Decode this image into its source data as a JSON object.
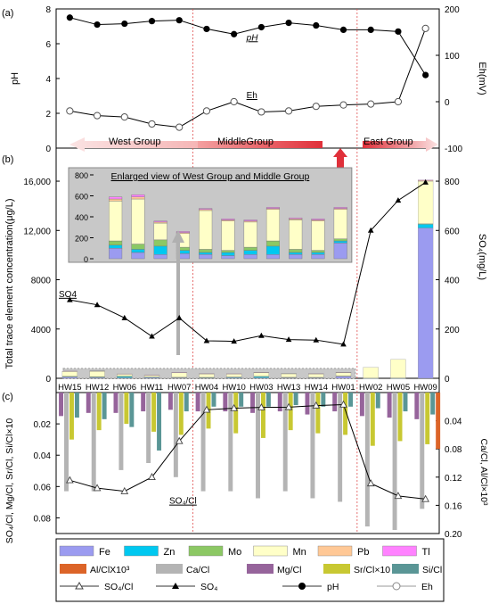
{
  "wells": [
    "HW15",
    "HW12",
    "HW06",
    "HW11",
    "HW07",
    "HW04",
    "HW10",
    "HW03",
    "HW13",
    "HW14",
    "HW01",
    "HW02",
    "HW05",
    "HW09"
  ],
  "panel_labels": {
    "a": "(a)",
    "b": "(b)",
    "c": "(c)"
  },
  "groups": {
    "west": "West Group",
    "middle": "MiddleGroup",
    "east": "East Group"
  },
  "inset_title": "Enlarged view of West Group  and Middle Group",
  "legend": {
    "items": [
      {
        "label": "Fe",
        "color": "#9b9bf0",
        "kind": "box"
      },
      {
        "label": "Zn",
        "color": "#00c8f0",
        "kind": "box"
      },
      {
        "label": "Mo",
        "color": "#8cc864",
        "kind": "box"
      },
      {
        "label": "Mn",
        "color": "#ffffc8",
        "kind": "box"
      },
      {
        "label": "Pb",
        "color": "#ffc896",
        "kind": "box"
      },
      {
        "label": "Tl",
        "color": "#ff82ff",
        "kind": "box"
      },
      {
        "label": "Al/ClX10³",
        "color": "#dc6428",
        "kind": "box"
      },
      {
        "label": "Ca/Cl",
        "color": "#b4b4b4",
        "kind": "box"
      },
      {
        "label": "Mg/Cl",
        "color": "#96649b",
        "kind": "box"
      },
      {
        "label": "Sr/Cl×10",
        "color": "#c8c832",
        "kind": "box"
      },
      {
        "label": "Si/Cl",
        "color": "#5a9696",
        "kind": "box"
      },
      {
        "label": "SO₄/Cl",
        "color": "#555555",
        "kind": "line-open-tri"
      },
      {
        "label": "SO₄",
        "color": "#000000",
        "kind": "line-tri"
      },
      {
        "label": "pH",
        "color": "#000000",
        "kind": "line-circle"
      },
      {
        "label": "Eh",
        "color": "#888888",
        "kind": "line-open-circle"
      }
    ]
  },
  "chart_data": [
    {
      "panel": "a",
      "type": "line",
      "x": [
        "HW15",
        "HW12",
        "HW06",
        "HW11",
        "HW07",
        "HW04",
        "HW10",
        "HW03",
        "HW13",
        "HW14",
        "HW01",
        "HW02",
        "HW05",
        "HW09"
      ],
      "ylabel": "pH",
      "ylabel_right": "Eh(mV)",
      "ylim": [
        0,
        8
      ],
      "ylim_right": [
        -100,
        200
      ],
      "yticks": [
        0,
        2,
        4,
        6,
        8
      ],
      "yticks_right": [
        -100,
        0,
        100,
        200
      ],
      "series": [
        {
          "name": "pH",
          "axis": "left",
          "values": [
            7.5,
            7.1,
            7.15,
            7.3,
            7.35,
            6.85,
            6.55,
            6.95,
            7.2,
            7.05,
            6.8,
            6.8,
            6.7,
            4.2
          ],
          "label": "pH"
        },
        {
          "name": "Eh",
          "axis": "right",
          "values": [
            -20,
            -30,
            -33,
            -48,
            -55,
            -20,
            0,
            -22,
            -20,
            -10,
            -7,
            -5,
            0,
            158
          ],
          "label": "Eh"
        }
      ]
    },
    {
      "panel": "b",
      "type": "bar",
      "stacked": true,
      "categories": [
        "HW15",
        "HW12",
        "HW06",
        "HW11",
        "HW07",
        "HW04",
        "HW10",
        "HW03",
        "HW13",
        "HW14",
        "HW01",
        "HW02",
        "HW05",
        "HW09"
      ],
      "ylabel": "Total trace element concentration(μg/L)",
      "ylabel_right": "SO₄(mg/L)",
      "ylim": [
        0,
        16800
      ],
      "ylim_right": [
        0,
        840
      ],
      "yticks": [
        0,
        4000,
        8000,
        12000,
        16000
      ],
      "ytick_labels": [
        "0",
        "4000",
        "8000",
        "12,000",
        "16,000"
      ],
      "yticks_right": [
        0,
        200,
        400,
        600,
        800
      ],
      "series": [
        {
          "name": "Fe",
          "values": [
            100,
            60,
            40,
            50,
            40,
            30,
            40,
            40,
            40,
            40,
            150,
            0,
            0,
            12200
          ]
        },
        {
          "name": "Zn",
          "values": [
            30,
            30,
            80,
            30,
            20,
            30,
            40,
            80,
            20,
            20,
            20,
            10,
            10,
            300
          ]
        },
        {
          "name": "Mo",
          "values": [
            40,
            50,
            60,
            30,
            30,
            20,
            30,
            50,
            30,
            20,
            20,
            10,
            20,
            50
          ]
        },
        {
          "name": "Mn",
          "values": [
            380,
            430,
            160,
            130,
            370,
            280,
            240,
            300,
            280,
            280,
            280,
            860,
            1500,
            3450
          ]
        },
        {
          "name": "Pb",
          "values": [
            20,
            20,
            10,
            10,
            10,
            10,
            10,
            10,
            10,
            10,
            10,
            0,
            0,
            50
          ]
        },
        {
          "name": "Tl",
          "values": [
            20,
            20,
            10,
            10,
            10,
            10,
            10,
            10,
            10,
            10,
            10,
            0,
            0,
            50
          ]
        }
      ],
      "line_series": {
        "name": "SO4",
        "axis": "right",
        "label": "SO4",
        "values": [
          318,
          298,
          245,
          170,
          245,
          152,
          150,
          173,
          157,
          155,
          138,
          600,
          722,
          795
        ]
      },
      "inset": {
        "title": "Enlarged view of West Group  and Middle Group",
        "categories": [
          "HW15",
          "HW12",
          "HW06",
          "HW11",
          "HW07",
          "HW04",
          "HW10",
          "HW03",
          "HW13",
          "HW14",
          "HW01"
        ],
        "ylim": [
          0,
          800
        ],
        "yticks": [
          0,
          200,
          400,
          600,
          800
        ]
      }
    },
    {
      "panel": "c",
      "type": "bar",
      "categories": [
        "HW15",
        "HW12",
        "HW06",
        "HW11",
        "HW07",
        "HW04",
        "HW10",
        "HW03",
        "HW13",
        "HW14",
        "HW01",
        "HW02",
        "HW05",
        "HW09"
      ],
      "ylabel": "SO₄/Cl, Mg/Cl, Sr/Cl, Si/Cl×10",
      "ylabel_right": "Ca/Cl, Al/Cl×10³",
      "ylim": [
        0,
        0.09
      ],
      "ylim_right": [
        0,
        0.2
      ],
      "yticks": [
        0.02,
        0.04,
        0.06,
        0.08
      ],
      "yticks_right": [
        0.04,
        0.08,
        0.12,
        0.16,
        0.2
      ],
      "inverted": true,
      "series": [
        {
          "name": "Mg/Cl",
          "axis": "left",
          "values": [
            0.015,
            0.013,
            0.013,
            0.012,
            0.011,
            0.012,
            0.012,
            0.013,
            0.012,
            0.014,
            0.012,
            0.015,
            0.016,
            0.017
          ]
        },
        {
          "name": "Ca/Cl",
          "axis": "right",
          "values": [
            0.14,
            0.14,
            0.11,
            0.1,
            0.12,
            0.14,
            0.14,
            0.15,
            0.14,
            0.15,
            0.155,
            0.19,
            0.195,
            0.165
          ]
        },
        {
          "name": "Sr/Cl×10",
          "axis": "left",
          "values": [
            0.03,
            0.024,
            0.02,
            0.025,
            0.027,
            0.023,
            0.026,
            0.029,
            0.024,
            0.026,
            0.027,
            0.034,
            0.031,
            0.033
          ]
        },
        {
          "name": "Si/Cl",
          "axis": "left",
          "values": [
            0.016,
            0.017,
            0.022,
            0.037,
            0.012,
            0.009,
            0.009,
            0.009,
            0.008,
            0.009,
            0.009,
            0.01,
            0.012,
            0.014
          ]
        },
        {
          "name": "Al/ClX10³",
          "axis": "right",
          "values": [
            0,
            0,
            0,
            0,
            0,
            0,
            0,
            0,
            0,
            0,
            0,
            0,
            0,
            0.08
          ]
        }
      ],
      "line_series": {
        "name": "SO₄/Cl",
        "axis": "left",
        "label": "SO₄/Cl",
        "values": [
          0.056,
          0.061,
          0.063,
          0.054,
          0.031,
          0.011,
          0.01,
          0.0095,
          0.0093,
          0.0083,
          0.0077,
          0.058,
          0.066,
          0.068
        ]
      }
    }
  ]
}
